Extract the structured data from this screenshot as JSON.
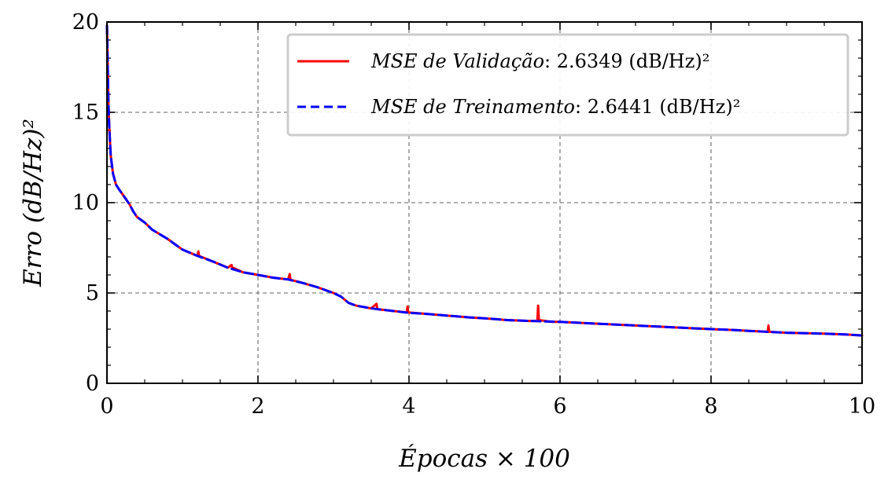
{
  "chart_data": {
    "type": "line",
    "xlabel": "Épocas × 100",
    "ylabel": "Erro (dB/Hz)²",
    "xlim": [
      0,
      10
    ],
    "ylim": [
      0,
      20
    ],
    "xticks": [
      "0",
      "2",
      "4",
      "6",
      "8",
      "10"
    ],
    "yticks": [
      "0",
      "5",
      "10",
      "15",
      "20"
    ],
    "grid": true,
    "legend_position": "top-right",
    "series": [
      {
        "name": "MSE de Validação: 2.6349 (dB/Hz)²",
        "legend_main": "MSE de Validação",
        "legend_value": ": 2.6349 (dB/Hz)²",
        "color": "#ff0000",
        "style": "solid",
        "x": [
          0,
          0.01,
          0.02,
          0.03,
          0.05,
          0.08,
          0.12,
          0.15,
          0.2,
          0.25,
          0.3,
          0.35,
          0.4,
          0.5,
          0.6,
          0.8,
          1.0,
          1.2,
          1.21,
          1.22,
          1.4,
          1.6,
          1.65,
          1.66,
          1.67,
          1.8,
          2.0,
          2.2,
          2.4,
          2.42,
          2.43,
          2.44,
          2.6,
          2.8,
          3.0,
          3.1,
          3.2,
          3.3,
          3.5,
          3.57,
          3.58,
          3.59,
          3.8,
          3.97,
          3.98,
          3.99,
          4.2,
          4.5,
          4.8,
          5.0,
          5.3,
          5.6,
          5.7,
          5.71,
          5.72,
          5.9,
          6.0,
          6.5,
          7.0,
          7.5,
          8.0,
          8.3,
          8.5,
          8.75,
          8.76,
          8.77,
          9.0,
          9.5,
          9.8,
          10.0
        ],
        "y": [
          19.8,
          17.5,
          15.5,
          14.2,
          12.6,
          11.6,
          11.0,
          10.8,
          10.5,
          10.2,
          9.9,
          9.5,
          9.2,
          8.9,
          8.5,
          8.0,
          7.4,
          7.05,
          7.3,
          7.05,
          6.75,
          6.4,
          6.55,
          6.35,
          6.4,
          6.15,
          6.0,
          5.85,
          5.75,
          6.05,
          5.75,
          5.72,
          5.55,
          5.3,
          5.0,
          4.8,
          4.45,
          4.3,
          4.15,
          4.4,
          4.12,
          4.1,
          4.0,
          3.92,
          4.25,
          3.92,
          3.85,
          3.75,
          3.65,
          3.6,
          3.5,
          3.45,
          3.45,
          4.3,
          3.5,
          3.4,
          3.4,
          3.3,
          3.2,
          3.1,
          3.0,
          2.95,
          2.9,
          2.85,
          3.2,
          2.85,
          2.8,
          2.75,
          2.7,
          2.65
        ]
      },
      {
        "name": "MSE de Treinamento: 2.6441 (dB/Hz)²",
        "legend_main": "MSE de Treinamento",
        "legend_value": ": 2.6441 (dB/Hz)²",
        "color": "#0000ff",
        "style": "dashed",
        "x": [
          0,
          0.01,
          0.02,
          0.03,
          0.05,
          0.08,
          0.12,
          0.15,
          0.2,
          0.25,
          0.3,
          0.35,
          0.4,
          0.5,
          0.6,
          0.8,
          1.0,
          1.2,
          1.4,
          1.6,
          1.8,
          2.0,
          2.2,
          2.4,
          2.6,
          2.8,
          3.0,
          3.1,
          3.2,
          3.3,
          3.5,
          3.8,
          4.0,
          4.2,
          4.5,
          4.8,
          5.0,
          5.3,
          5.6,
          6.0,
          6.5,
          7.0,
          7.5,
          8.0,
          8.3,
          8.5,
          9.0,
          9.5,
          9.8,
          10.0
        ],
        "y": [
          19.8,
          17.5,
          15.5,
          14.2,
          12.6,
          11.6,
          11.0,
          10.8,
          10.5,
          10.2,
          9.9,
          9.5,
          9.2,
          8.9,
          8.5,
          8.0,
          7.4,
          7.05,
          6.75,
          6.4,
          6.15,
          6.0,
          5.85,
          5.75,
          5.55,
          5.3,
          5.0,
          4.8,
          4.45,
          4.3,
          4.15,
          4.0,
          3.9,
          3.85,
          3.75,
          3.65,
          3.6,
          3.5,
          3.45,
          3.4,
          3.3,
          3.2,
          3.1,
          3.0,
          2.95,
          2.9,
          2.8,
          2.75,
          2.7,
          2.65
        ]
      }
    ]
  }
}
